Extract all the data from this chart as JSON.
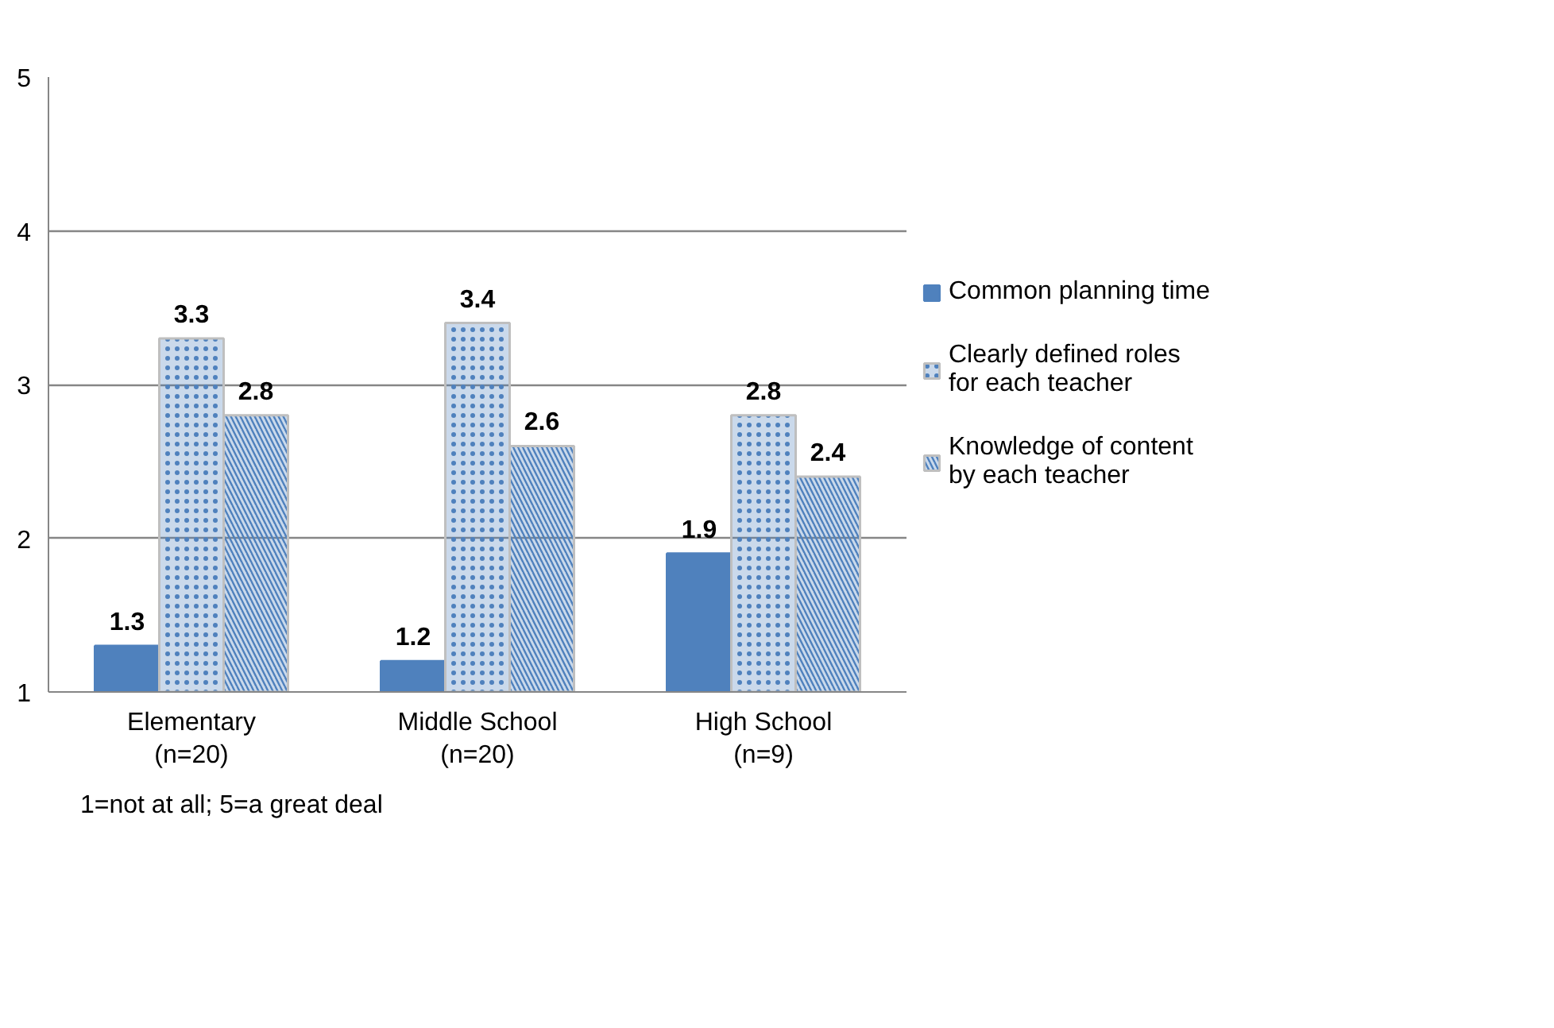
{
  "chart_data": {
    "type": "bar",
    "categories": [
      "Elementary (n=20)",
      "Middle School (n=20)",
      "High School (n=9)"
    ],
    "series": [
      {
        "name": "Common planning time",
        "color": "#4f81bd",
        "values": [
          1.3,
          1.2,
          1.9
        ]
      },
      {
        "name": "Clearly defined roles for each teacher",
        "color": "#4f81bd",
        "values": [
          3.3,
          3.4,
          2.8
        ]
      },
      {
        "name": "Knowledge of content by each teacher",
        "color": "#4f81bd",
        "values": [
          2.8,
          2.6,
          2.4
        ]
      }
    ],
    "ylim": [
      1,
      5
    ],
    "yticks": [
      1,
      2,
      3,
      4,
      5
    ],
    "grid": "y",
    "legend": "right",
    "data_labels": true,
    "annotations": [
      "1=not at all; 5=a great deal"
    ]
  }
}
